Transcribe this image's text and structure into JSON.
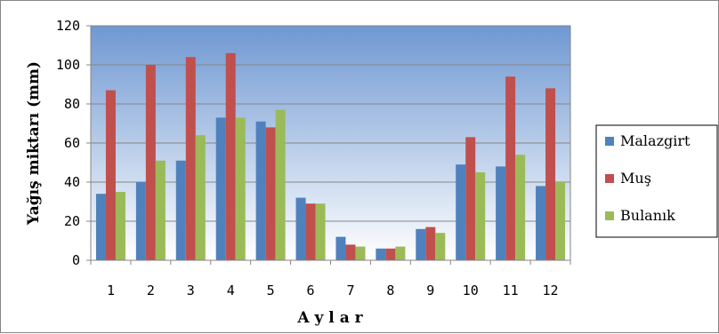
{
  "chart_data": {
    "type": "bar",
    "categories": [
      "1",
      "2",
      "3",
      "4",
      "5",
      "6",
      "7",
      "8",
      "9",
      "10",
      "11",
      "12"
    ],
    "series": [
      {
        "name": "Malazgirt",
        "color": "#4F81BD",
        "values": [
          34,
          40,
          51,
          73,
          71,
          32,
          12,
          6,
          16,
          49,
          48,
          38
        ]
      },
      {
        "name": "Muş",
        "color": "#C0504D",
        "values": [
          87,
          100,
          104,
          106,
          68,
          29,
          8,
          6,
          17,
          63,
          94,
          88
        ]
      },
      {
        "name": "Bulanık",
        "color": "#9BBB59",
        "values": [
          35,
          51,
          64,
          73,
          77,
          29,
          7,
          7,
          14,
          45,
          54,
          40
        ]
      }
    ],
    "yticks": [
      "0",
      "20",
      "40",
      "60",
      "80",
      "100",
      "120"
    ],
    "ylim": [
      0,
      120
    ],
    "xlabel": "A y l a r",
    "ylabel": "Yağış miktarı (mm)",
    "grid": true,
    "legend_position": "right"
  }
}
